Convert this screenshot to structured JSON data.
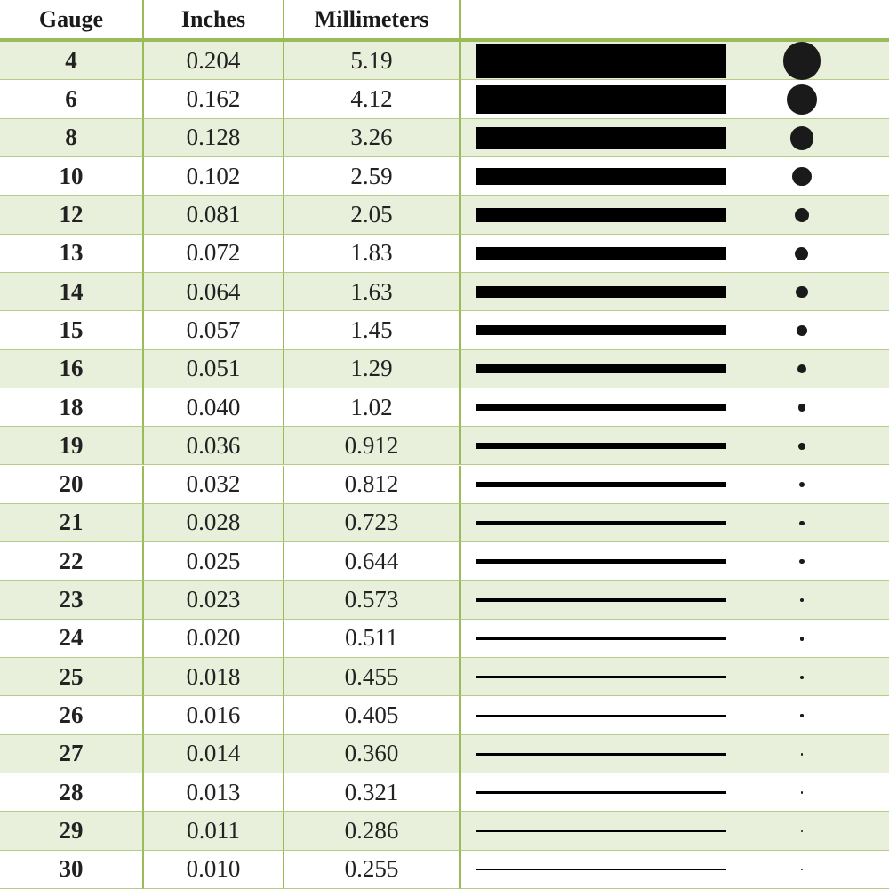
{
  "table": {
    "header": [
      "Gauge",
      "Inches",
      "Millimeters"
    ],
    "rows": [
      [
        "4",
        "0.204",
        "5.19"
      ],
      [
        "6",
        "0.162",
        "4.12"
      ],
      [
        "8",
        "0.128",
        "3.26"
      ],
      [
        "10",
        "0.102",
        "2.59"
      ],
      [
        "12",
        "0.081",
        "2.05"
      ],
      [
        "13",
        "0.072",
        "1.83"
      ],
      [
        "14",
        "0.064",
        "1.63"
      ],
      [
        "15",
        "0.057",
        "1.45"
      ],
      [
        "16",
        "0.051",
        "1.29"
      ],
      [
        "18",
        "0.040",
        "1.02"
      ],
      [
        "19",
        "0.036",
        "0.912"
      ],
      [
        "20",
        "0.032",
        "0.812"
      ],
      [
        "21",
        "0.028",
        "0.723"
      ],
      [
        "22",
        "0.025",
        "0.644"
      ],
      [
        "23",
        "0.023",
        "0.573"
      ],
      [
        "24",
        "0.020",
        "0.511"
      ],
      [
        "25",
        "0.018",
        "0.455"
      ],
      [
        "26",
        "0.016",
        "0.405"
      ],
      [
        "27",
        "0.014",
        "0.360"
      ],
      [
        "28",
        "0.013",
        "0.321"
      ],
      [
        "29",
        "0.011",
        "0.286"
      ],
      [
        "30",
        "0.010",
        "0.255"
      ]
    ]
  }
}
